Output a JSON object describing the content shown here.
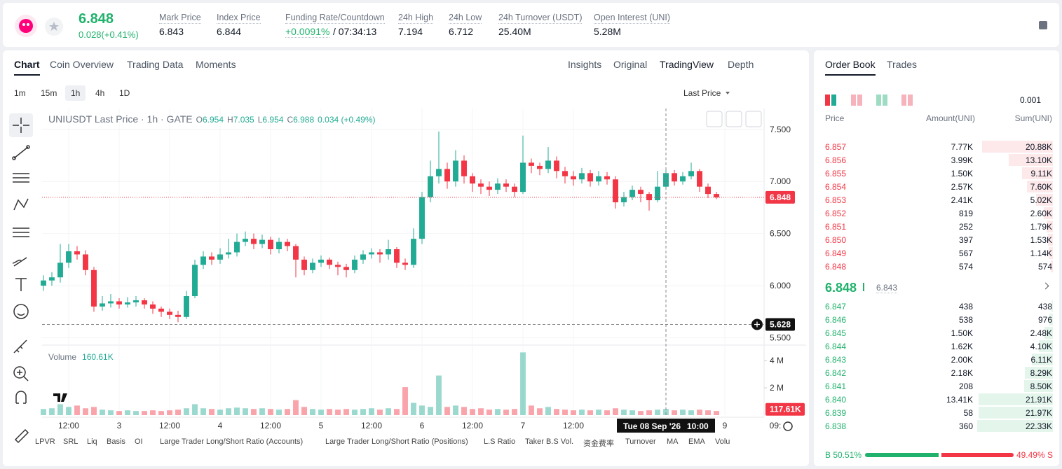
{
  "header": {
    "last_price": "6.848",
    "change": "0.028(+0.41%)",
    "stats": [
      {
        "label": "Mark Price",
        "value": "6.843"
      },
      {
        "label": "Index Price",
        "value": "6.844"
      },
      {
        "label": "Funding Rate/Countdown",
        "value": "+0.0091%",
        "extra": "/ 07:34:13"
      },
      {
        "label": "24h High",
        "value": "7.194"
      },
      {
        "label": "24h Low",
        "value": "6.712"
      },
      {
        "label": "24h Turnover (USDT)",
        "value": "25.40M"
      },
      {
        "label": "Open Interest (UNI)",
        "value": "5.28M"
      }
    ]
  },
  "chart_tabs": [
    "Chart",
    "Coin Overview",
    "Trading Data",
    "Moments"
  ],
  "chart_views": [
    "Insights",
    "Original",
    "TradingView",
    "Depth"
  ],
  "intervals": [
    "1m",
    "15m",
    "1h",
    "4h",
    "1D"
  ],
  "price_source": "Last Price",
  "legend": {
    "symbol": "UNIUSDT Last Price · 1h · GATE",
    "o_label": "O",
    "open": "6.954",
    "h_label": "H",
    "high": "7.035",
    "l_label": "L",
    "low": "6.954",
    "c_label": "C",
    "close": "6.988",
    "change": "0.034 (+0.49%)"
  },
  "volume_legend": {
    "label": "Volume",
    "value": "160.61K"
  },
  "indicators": [
    "LPVR",
    "SRL",
    "Liq",
    "Basis",
    "OI",
    "Large Trader Long/Short Ratio (Accounts)",
    "Large Trader Long/Short Ratio (Positions)",
    "L.S Ratio",
    "Taker B.S Vol.",
    "资金费率",
    "Turnover",
    "MA",
    "EMA",
    "Volu"
  ],
  "chart_data": {
    "type": "candlestick",
    "up_color": "#22ab94",
    "down_color": "#f23645",
    "x": [
      6,
      8,
      10,
      12,
      14,
      16,
      18,
      20,
      22,
      24,
      26,
      28,
      30,
      32,
      34,
      36,
      38,
      40,
      42,
      44,
      46,
      48,
      50,
      52,
      54,
      56,
      58,
      60,
      62,
      64,
      66,
      68,
      70,
      72,
      74,
      76,
      78,
      80,
      82,
      84,
      86,
      88,
      90,
      92,
      94,
      96,
      98,
      100,
      102,
      104,
      106,
      108,
      110,
      112,
      114,
      116,
      118,
      120,
      122,
      124,
      126,
      128,
      130,
      132,
      134,
      136,
      138,
      140,
      142,
      144,
      146,
      148,
      150,
      152,
      154,
      156,
      158,
      160,
      162,
      164,
      166
    ],
    "open": [
      6.0,
      6.05,
      6.08,
      6.22,
      6.33,
      6.3,
      6.15,
      5.8,
      5.83,
      5.85,
      5.82,
      5.84,
      5.86,
      5.82,
      5.78,
      5.75,
      5.72,
      5.7,
      5.9,
      6.2,
      6.28,
      6.25,
      6.3,
      6.32,
      6.42,
      6.45,
      6.4,
      6.44,
      6.35,
      6.42,
      6.38,
      6.25,
      6.15,
      6.22,
      6.25,
      6.2,
      6.18,
      6.15,
      6.25,
      6.3,
      6.32,
      6.3,
      6.35,
      6.22,
      6.2,
      6.45,
      6.85,
      7.05,
      7.12,
      7.0,
      7.2,
      7.05,
      6.98,
      6.95,
      6.92,
      6.98,
      6.95,
      6.9,
      7.18,
      7.15,
      7.12,
      7.2,
      7.1,
      7.05,
      7.02,
      7.08,
      7.0,
      7.05,
      7.02,
      6.8,
      6.85,
      6.92,
      6.88,
      6.82,
      6.95,
      7.08,
      7.0,
      7.05,
      7.1,
      6.95,
      6.88
    ],
    "high": [
      6.1,
      6.13,
      6.4,
      6.4,
      6.38,
      6.34,
      6.18,
      5.9,
      5.92,
      5.88,
      5.89,
      5.9,
      5.88,
      5.85,
      5.8,
      5.78,
      5.76,
      5.95,
      6.25,
      6.33,
      6.32,
      6.36,
      6.45,
      6.5,
      6.52,
      6.5,
      6.49,
      6.47,
      6.46,
      6.45,
      6.4,
      6.28,
      6.26,
      6.29,
      6.27,
      6.23,
      6.21,
      6.29,
      6.34,
      6.36,
      6.35,
      6.44,
      6.37,
      6.26,
      6.55,
      6.9,
      7.2,
      7.48,
      7.18,
      7.3,
      7.25,
      7.08,
      7.02,
      7.0,
      7.03,
      7.02,
      6.98,
      7.44,
      7.22,
      7.18,
      7.33,
      7.24,
      7.14,
      7.1,
      7.13,
      7.11,
      7.1,
      7.09,
      7.05,
      6.9,
      6.96,
      6.95,
      6.9,
      7.1,
      7.12,
      7.11,
      7.09,
      7.18,
      7.12,
      6.98,
      6.9
    ],
    "low": [
      5.95,
      6.0,
      6.03,
      6.17,
      6.25,
      6.1,
      5.75,
      5.76,
      5.79,
      5.78,
      5.79,
      5.8,
      5.78,
      5.73,
      5.7,
      5.68,
      5.65,
      5.68,
      5.88,
      6.16,
      6.2,
      6.21,
      6.26,
      6.28,
      6.38,
      6.35,
      6.36,
      6.3,
      6.31,
      6.33,
      6.08,
      6.1,
      6.12,
      6.18,
      6.16,
      6.1,
      6.08,
      6.12,
      6.21,
      6.26,
      6.22,
      6.25,
      6.17,
      6.15,
      6.17,
      6.4,
      6.8,
      6.98,
      6.93,
      6.95,
      6.98,
      6.9,
      6.88,
      6.86,
      6.88,
      6.9,
      6.85,
      6.88,
      7.08,
      7.06,
      7.08,
      7.03,
      6.98,
      6.96,
      6.98,
      6.95,
      6.96,
      6.97,
      6.74,
      6.76,
      6.82,
      6.8,
      6.72,
      6.8,
      6.92,
      6.96,
      6.97,
      7.02,
      6.9,
      6.84,
      6.83
    ],
    "close": [
      6.05,
      6.08,
      6.22,
      6.33,
      6.3,
      6.15,
      5.8,
      5.83,
      5.85,
      5.82,
      5.84,
      5.86,
      5.82,
      5.78,
      5.75,
      5.72,
      5.7,
      5.9,
      6.2,
      6.28,
      6.25,
      6.3,
      6.32,
      6.42,
      6.45,
      6.4,
      6.44,
      6.35,
      6.42,
      6.38,
      6.25,
      6.15,
      6.22,
      6.25,
      6.2,
      6.18,
      6.15,
      6.25,
      6.3,
      6.32,
      6.3,
      6.35,
      6.22,
      6.2,
      6.45,
      6.85,
      7.05,
      7.12,
      7.0,
      7.2,
      7.05,
      6.98,
      6.95,
      6.92,
      6.98,
      6.95,
      6.9,
      7.18,
      7.15,
      7.12,
      7.2,
      7.1,
      7.05,
      7.02,
      7.08,
      7.0,
      7.05,
      7.02,
      6.8,
      6.85,
      6.92,
      6.88,
      6.82,
      6.95,
      7.08,
      7.0,
      7.05,
      7.1,
      6.95,
      6.88,
      6.848
    ],
    "volume": [
      0.45,
      0.5,
      0.8,
      0.6,
      0.7,
      0.5,
      0.6,
      0.4,
      0.35,
      0.3,
      0.35,
      0.3,
      0.3,
      0.35,
      0.3,
      0.35,
      0.4,
      0.5,
      0.8,
      0.5,
      0.45,
      0.4,
      0.5,
      0.55,
      0.5,
      0.45,
      0.5,
      0.45,
      0.4,
      0.45,
      1.1,
      0.6,
      0.45,
      0.4,
      0.45,
      0.4,
      0.45,
      0.4,
      0.45,
      0.5,
      0.4,
      0.5,
      0.45,
      2.05,
      0.9,
      0.7,
      0.6,
      2.9,
      0.6,
      0.7,
      0.6,
      0.45,
      0.5,
      0.4,
      0.45,
      0.4,
      0.45,
      4.6,
      0.7,
      0.5,
      0.6,
      0.45,
      0.4,
      0.35,
      0.4,
      0.35,
      0.4,
      0.35,
      0.5,
      0.4,
      0.35,
      0.3,
      0.35,
      0.4,
      0.45,
      0.35,
      0.4,
      0.35,
      0.4,
      0.35,
      0.3
    ],
    "xlim": [
      5.67,
      177.33
    ],
    "xticks": [
      {
        "value": 12,
        "label": "12:00"
      },
      {
        "value": 24,
        "label": "3"
      },
      {
        "value": 36,
        "label": "12:00"
      },
      {
        "value": 48,
        "label": "4"
      },
      {
        "value": 60,
        "label": "12:00"
      },
      {
        "value": 72,
        "label": "5"
      },
      {
        "value": 84,
        "label": "12:00"
      },
      {
        "value": 96,
        "label": "6"
      },
      {
        "value": 108,
        "label": "12:00"
      },
      {
        "value": 120,
        "label": "7"
      },
      {
        "value": 132,
        "label": "12:00"
      },
      {
        "value": 168,
        "label": "9"
      },
      {
        "value": 180,
        "label": "09:"
      }
    ],
    "ylim": [
      5.43,
      7.7
    ],
    "yticks": [
      {
        "value": 5.5,
        "label": "5.500"
      },
      {
        "value": 6.0,
        "label": "6.000"
      },
      {
        "value": 6.5,
        "label": "6.500"
      },
      {
        "value": 7.0,
        "label": "7.000"
      },
      {
        "value": 7.5,
        "label": "7.500"
      }
    ],
    "y2lim": [
      0,
      5.03
    ],
    "y2ticks": [
      {
        "value": 2,
        "label": "2 M"
      },
      {
        "value": 4,
        "label": "4 M"
      }
    ],
    "grid": true,
    "last_price": {
      "value": 6.848,
      "label": "6.848"
    },
    "last_volume": {
      "value": 0.11761,
      "label": "117.61K"
    },
    "crosshair": {
      "x": 154,
      "price": {
        "value": 5.628,
        "label": "5.628"
      },
      "date_label": "Tue 08 Sep '26",
      "time_label": "10:00"
    }
  },
  "order_book": {
    "tabs": [
      "Order Book",
      "Trades"
    ],
    "precision": "0.001",
    "columns": [
      "Price",
      "Amount(UNI)",
      "Sum(UNI)"
    ],
    "asks": [
      {
        "price": "6.857",
        "amount": "7.77K",
        "sum": {
          "value": 20880,
          "label": "20.88K"
        }
      },
      {
        "price": "6.856",
        "amount": "3.99K",
        "sum": {
          "value": 13100,
          "label": "13.10K"
        }
      },
      {
        "price": "6.855",
        "amount": "1.50K",
        "sum": {
          "value": 9110,
          "label": "9.11K"
        }
      },
      {
        "price": "6.854",
        "amount": "2.57K",
        "sum": {
          "value": 7600,
          "label": "7.60K"
        }
      },
      {
        "price": "6.853",
        "amount": "2.41K",
        "sum": {
          "value": 5020,
          "label": "5.02K"
        }
      },
      {
        "price": "6.852",
        "amount": "819",
        "sum": {
          "value": 2600,
          "label": "2.60K"
        }
      },
      {
        "price": "6.851",
        "amount": "252",
        "sum": {
          "value": 1790,
          "label": "1.79K"
        }
      },
      {
        "price": "6.850",
        "amount": "397",
        "sum": {
          "value": 1530,
          "label": "1.53K"
        }
      },
      {
        "price": "6.849",
        "amount": "567",
        "sum": {
          "value": 1140,
          "label": "1.14K"
        }
      },
      {
        "price": "6.848",
        "amount": "574",
        "sum": {
          "value": 574,
          "label": "574"
        }
      }
    ],
    "mid_price": "6.848",
    "mark_price": "6.843",
    "bids": [
      {
        "price": "6.847",
        "amount": "438",
        "sum": {
          "value": 438,
          "label": "438"
        }
      },
      {
        "price": "6.846",
        "amount": "538",
        "sum": {
          "value": 976,
          "label": "976"
        }
      },
      {
        "price": "6.845",
        "amount": "1.50K",
        "sum": {
          "value": 2480,
          "label": "2.48K"
        }
      },
      {
        "price": "6.844",
        "amount": "1.62K",
        "sum": {
          "value": 4100,
          "label": "4.10K"
        }
      },
      {
        "price": "6.843",
        "amount": "2.00K",
        "sum": {
          "value": 6110,
          "label": "6.11K"
        }
      },
      {
        "price": "6.842",
        "amount": "2.18K",
        "sum": {
          "value": 8290,
          "label": "8.29K"
        }
      },
      {
        "price": "6.841",
        "amount": "208",
        "sum": {
          "value": 8500,
          "label": "8.50K"
        }
      },
      {
        "price": "6.840",
        "amount": "13.41K",
        "sum": {
          "value": 21910,
          "label": "21.91K"
        }
      },
      {
        "price": "6.839",
        "amount": "58",
        "sum": {
          "value": 21970,
          "label": "21.97K"
        }
      },
      {
        "price": "6.838",
        "amount": "360",
        "sum": {
          "value": 22330,
          "label": "22.33K"
        }
      }
    ],
    "buy_ratio": {
      "value": 50.51,
      "label": "B 50.51%"
    },
    "sell_ratio": {
      "value": 49.49,
      "label": "49.49% S"
    }
  }
}
